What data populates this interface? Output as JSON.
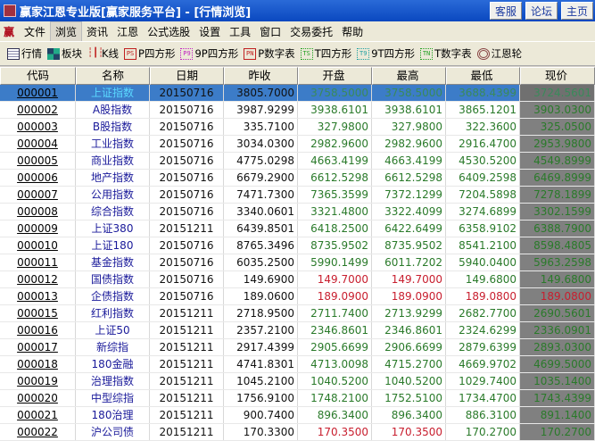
{
  "title": "赢家江恩专业版[赢家服务平台] - [行情浏览]",
  "title_buttons": [
    "客服",
    "论坛",
    "主页"
  ],
  "menu": [
    "文件",
    "浏览",
    "资讯",
    "江恩",
    "公式选股",
    "设置",
    "工具",
    "窗口",
    "交易委托",
    "帮助"
  ],
  "menu_logo": "赢",
  "toolbar": [
    {
      "label": "行情",
      "icon": "table-icon",
      "tag": ""
    },
    {
      "label": "板块",
      "icon": "blocks-icon",
      "tag": ""
    },
    {
      "label": "K线",
      "icon": "candlestick-icon",
      "tag": ""
    },
    {
      "label": "P四方形",
      "icon": "ps-icon",
      "tag": "PS",
      "color": "#c02020"
    },
    {
      "label": "9P四方形",
      "icon": "p9-icon",
      "tag": "P9",
      "color": "#c020c0"
    },
    {
      "label": "P数字表",
      "icon": "pn-icon",
      "tag": "PN",
      "color": "#c02020"
    },
    {
      "label": "T四方形",
      "icon": "ts-icon",
      "tag": "TS",
      "color": "#20a020"
    },
    {
      "label": "9T四方形",
      "icon": "t9-icon",
      "tag": "T9",
      "color": "#20a0a0"
    },
    {
      "label": "T数字表",
      "icon": "tn-icon",
      "tag": "TN",
      "color": "#20a020"
    },
    {
      "label": "江恩轮",
      "icon": "gann-wheel-icon",
      "tag": ""
    }
  ],
  "columns": [
    "代码",
    "名称",
    "日期",
    "昨收",
    "开盘",
    "最高",
    "最低",
    "现价"
  ],
  "colors": {
    "up": "#c81e2e",
    "down": "#2a7a2a",
    "name": "#1a1a9a",
    "selected": "#3c7cc8"
  },
  "rows": [
    [
      "000001",
      "上证指数",
      "20150716",
      "3805.7000",
      "3758.5000",
      "3758.5000",
      "3688.4399",
      "3724.5601",
      "g",
      "g",
      "g",
      "g"
    ],
    [
      "000002",
      "A股指数",
      "20150716",
      "3987.9299",
      "3938.6101",
      "3938.6101",
      "3865.1201",
      "3903.0300",
      "g",
      "g",
      "g",
      "g"
    ],
    [
      "000003",
      "B股指数",
      "20150716",
      "335.7100",
      "327.9800",
      "327.9800",
      "322.3600",
      "325.0500",
      "g",
      "g",
      "g",
      "g"
    ],
    [
      "000004",
      "工业指数",
      "20150716",
      "3034.0300",
      "2982.9600",
      "2982.9600",
      "2916.4700",
      "2953.9800",
      "g",
      "g",
      "g",
      "g"
    ],
    [
      "000005",
      "商业指数",
      "20150716",
      "4775.0298",
      "4663.4199",
      "4663.4199",
      "4530.5200",
      "4549.8999",
      "g",
      "g",
      "g",
      "g"
    ],
    [
      "000006",
      "地产指数",
      "20150716",
      "6679.2900",
      "6612.5298",
      "6612.5298",
      "6409.2598",
      "6469.8999",
      "g",
      "g",
      "g",
      "g"
    ],
    [
      "000007",
      "公用指数",
      "20150716",
      "7471.7300",
      "7365.3599",
      "7372.1299",
      "7204.5898",
      "7278.1899",
      "g",
      "g",
      "g",
      "g"
    ],
    [
      "000008",
      "综合指数",
      "20150716",
      "3340.0601",
      "3321.4800",
      "3322.4099",
      "3274.6899",
      "3302.1599",
      "g",
      "g",
      "g",
      "g"
    ],
    [
      "000009",
      "上证380",
      "20151211",
      "6439.8501",
      "6418.2500",
      "6422.6499",
      "6358.9102",
      "6388.7900",
      "g",
      "g",
      "g",
      "g"
    ],
    [
      "000010",
      "上证180",
      "20150716",
      "8765.3496",
      "8735.9502",
      "8735.9502",
      "8541.2100",
      "8598.4805",
      "g",
      "g",
      "g",
      "g"
    ],
    [
      "000011",
      "基金指数",
      "20150716",
      "6035.2500",
      "5990.1499",
      "6011.7202",
      "5940.0400",
      "5963.2598",
      "g",
      "g",
      "g",
      "g"
    ],
    [
      "000012",
      "国债指数",
      "20150716",
      "149.6900",
      "149.7000",
      "149.7000",
      "149.6800",
      "149.6800",
      "r",
      "r",
      "g",
      "g"
    ],
    [
      "000013",
      "企债指数",
      "20150716",
      "189.0600",
      "189.0900",
      "189.0900",
      "189.0800",
      "189.0800",
      "r",
      "r",
      "r",
      "r"
    ],
    [
      "000015",
      "红利指数",
      "20151211",
      "2718.9500",
      "2711.7400",
      "2713.9299",
      "2682.7700",
      "2690.5601",
      "g",
      "g",
      "g",
      "g"
    ],
    [
      "000016",
      "上证50",
      "20151211",
      "2357.2100",
      "2346.8601",
      "2346.8601",
      "2324.6299",
      "2336.0901",
      "g",
      "g",
      "g",
      "g"
    ],
    [
      "000017",
      "新综指",
      "20151211",
      "2917.4399",
      "2905.6699",
      "2906.6699",
      "2879.6399",
      "2893.0300",
      "g",
      "g",
      "g",
      "g"
    ],
    [
      "000018",
      "180金融",
      "20151211",
      "4741.8301",
      "4713.0098",
      "4715.2700",
      "4669.9702",
      "4699.5000",
      "g",
      "g",
      "g",
      "g"
    ],
    [
      "000019",
      "治理指数",
      "20151211",
      "1045.2100",
      "1040.5200",
      "1040.5200",
      "1029.7400",
      "1035.1400",
      "g",
      "g",
      "g",
      "g"
    ],
    [
      "000020",
      "中型综指",
      "20151211",
      "1756.9100",
      "1748.2100",
      "1752.5100",
      "1734.4700",
      "1743.4399",
      "g",
      "g",
      "g",
      "g"
    ],
    [
      "000021",
      "180治理",
      "20151211",
      "900.7400",
      "896.3400",
      "896.3400",
      "886.3100",
      "891.1400",
      "g",
      "g",
      "g",
      "g"
    ],
    [
      "000022",
      "沪公司债",
      "20151211",
      "170.3300",
      "170.3500",
      "170.3500",
      "170.2700",
      "170.2700",
      "r",
      "r",
      "g",
      "g"
    ]
  ],
  "selected_row": 0
}
